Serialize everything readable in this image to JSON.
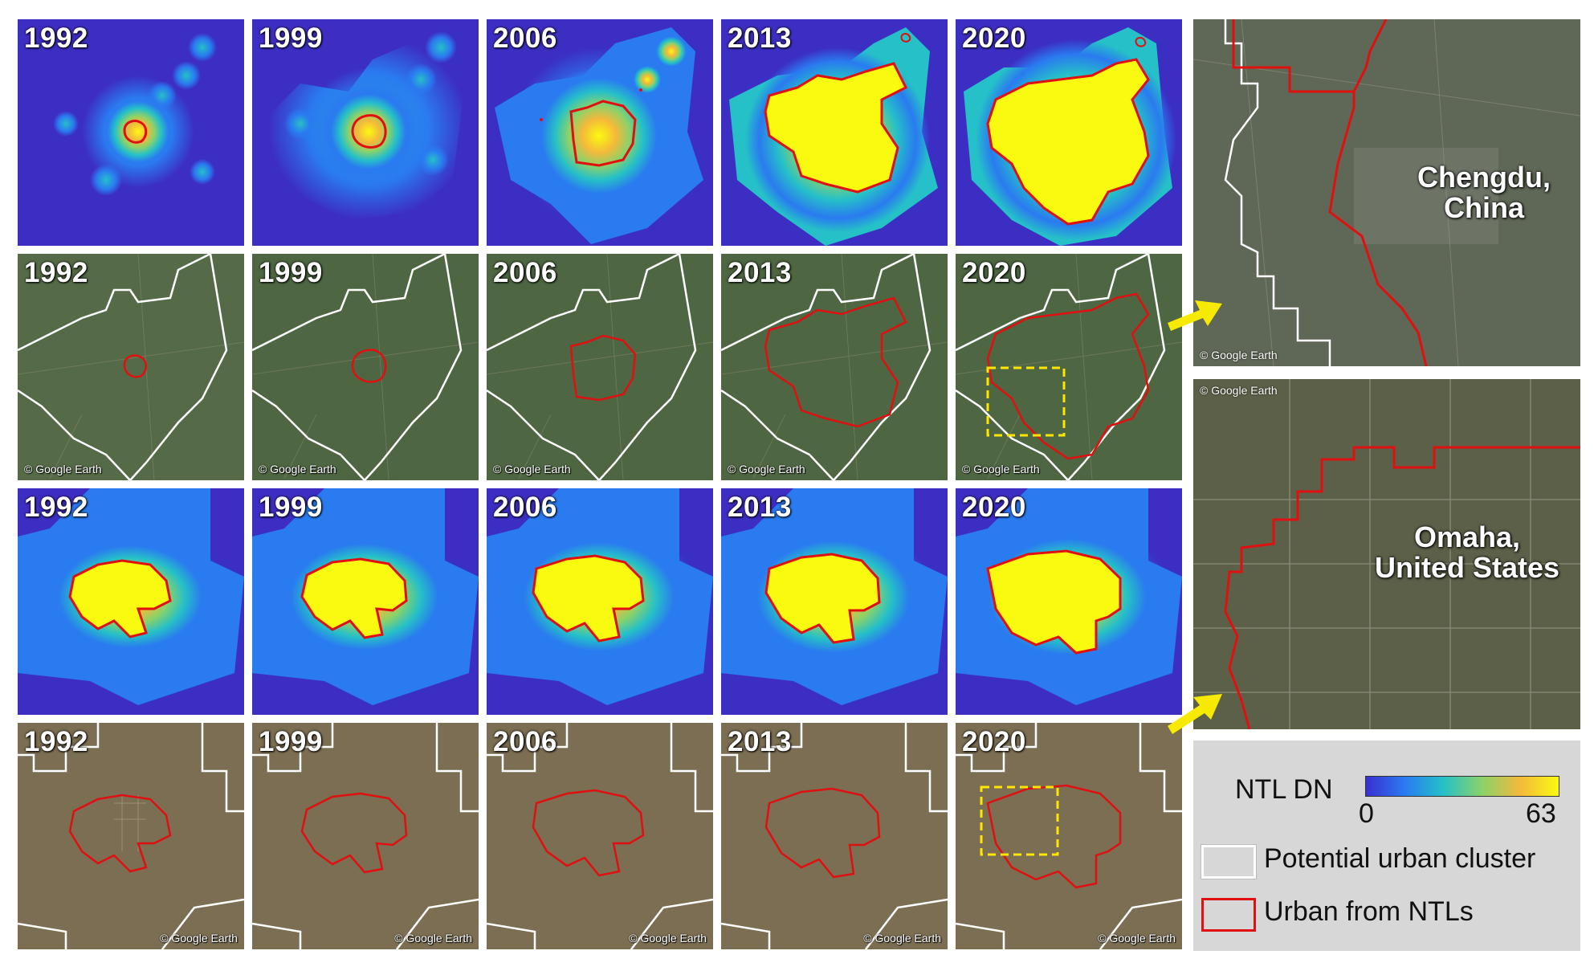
{
  "rows": [
    {
      "id": "chengdu-ntl",
      "type": "ntl",
      "years": [
        "1992",
        "1999",
        "2006",
        "2013",
        "2020"
      ],
      "credit": ""
    },
    {
      "id": "chengdu-earth",
      "type": "satellite",
      "years": [
        "1992",
        "1999",
        "2006",
        "2013",
        "2020"
      ],
      "credit": "© Google Earth"
    },
    {
      "id": "omaha-ntl",
      "type": "ntl",
      "years": [
        "1992",
        "1999",
        "2006",
        "2013",
        "2020"
      ],
      "credit": ""
    },
    {
      "id": "omaha-earth",
      "type": "satellite",
      "years": [
        "1992",
        "1999",
        "2006",
        "2013",
        "2020"
      ],
      "credit": "© Google Earth"
    }
  ],
  "zoom_panels": {
    "chengdu": {
      "label_line1": "Chengdu,",
      "label_line2": "China",
      "credit": "© Google Earth"
    },
    "omaha": {
      "label_line1": "Omaha,",
      "label_line2": "United States",
      "credit": "© Google Earth"
    }
  },
  "legend": {
    "ntl_title": "NTL DN",
    "ntl_min": "0",
    "ntl_max": "63",
    "colormap": [
      "#3a2fd0",
      "#2a7af0",
      "#25c0c8",
      "#8ad26a",
      "#f4b93a",
      "#fafa10"
    ],
    "potential_label": "Potential urban cluster",
    "urban_label": "Urban from NTLs",
    "potential_color": "#ffffff",
    "urban_color": "#e01010"
  },
  "colors": {
    "ntl_background": "#3c2ec2",
    "urban_outline": "#e01010",
    "cluster_outline": "#ffffff",
    "zoom_box": "#ffe600",
    "arrow": "#f5ea00"
  }
}
